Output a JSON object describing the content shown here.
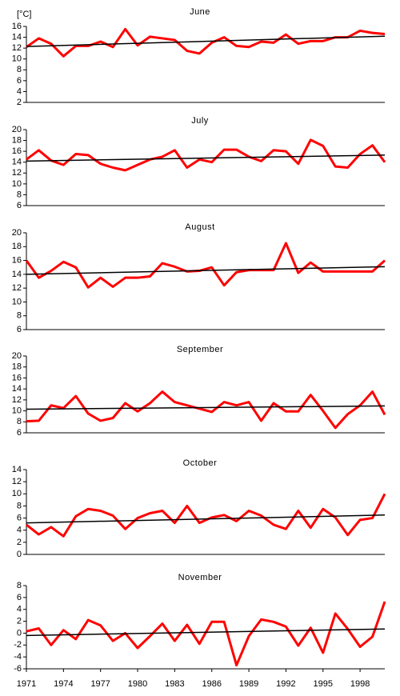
{
  "chart_data": [
    {
      "type": "line",
      "title": "June",
      "y_label": "[°C]",
      "x": [
        1971,
        1972,
        1973,
        1974,
        1975,
        1976,
        1977,
        1978,
        1979,
        1980,
        1981,
        1982,
        1983,
        1984,
        1985,
        1986,
        1987,
        1988,
        1989,
        1990,
        1991,
        1992,
        1993,
        1994,
        1995,
        1996,
        1997,
        1998,
        1999,
        2000
      ],
      "series": [
        {
          "color": "#ff0000",
          "values": [
            12.2,
            13.8,
            12.8,
            10.5,
            12.4,
            12.4,
            13.2,
            12.2,
            15.5,
            12.5,
            14.1,
            13.8,
            13.5,
            11.5,
            11.0,
            13.0,
            14.0,
            12.4,
            12.2,
            13.2,
            13.0,
            14.5,
            12.8,
            13.3,
            13.3,
            14.0,
            14.0,
            15.2,
            14.8,
            14.6
          ]
        },
        {
          "color": "#000000",
          "x": [
            1971,
            2000
          ],
          "values": [
            12.3,
            14.2
          ]
        }
      ],
      "xlim": [
        1971,
        2000
      ],
      "ylim": [
        2,
        16
      ],
      "yticks": [
        2,
        4,
        6,
        8,
        10,
        12,
        14,
        16
      ]
    },
    {
      "type": "line",
      "title": "July",
      "x": [
        1971,
        1972,
        1973,
        1974,
        1975,
        1976,
        1977,
        1978,
        1979,
        1980,
        1981,
        1982,
        1983,
        1984,
        1985,
        1986,
        1987,
        1988,
        1989,
        1990,
        1991,
        1992,
        1993,
        1994,
        1995,
        1996,
        1997,
        1998,
        1999,
        2000
      ],
      "series": [
        {
          "color": "#ff0000",
          "values": [
            14.5,
            16.2,
            14.3,
            13.5,
            15.5,
            15.3,
            13.7,
            13.0,
            12.5,
            13.5,
            14.5,
            15.0,
            16.2,
            13.0,
            14.5,
            14.0,
            16.3,
            16.3,
            15.0,
            14.2,
            16.2,
            16.0,
            13.7,
            18.1,
            17.0,
            13.2,
            13.0,
            15.5,
            17.1,
            14.0
          ]
        },
        {
          "color": "#000000",
          "x": [
            1971,
            2000
          ],
          "values": [
            14.2,
            15.3
          ]
        }
      ],
      "xlim": [
        1971,
        2000
      ],
      "ylim": [
        6,
        20
      ],
      "yticks": [
        6,
        8,
        10,
        12,
        14,
        16,
        18,
        20
      ]
    },
    {
      "type": "line",
      "title": "August",
      "x": [
        1971,
        1972,
        1973,
        1974,
        1975,
        1976,
        1977,
        1978,
        1979,
        1980,
        1981,
        1982,
        1983,
        1984,
        1985,
        1986,
        1987,
        1988,
        1989,
        1990,
        1991,
        1992,
        1993,
        1994,
        1995,
        1996,
        1997,
        1998,
        1999,
        2000
      ],
      "series": [
        {
          "color": "#ff0000",
          "values": [
            16.0,
            13.5,
            14.5,
            15.8,
            15.0,
            12.1,
            13.5,
            12.2,
            13.5,
            13.5,
            13.7,
            15.6,
            15.1,
            14.4,
            14.5,
            15.0,
            12.4,
            14.3,
            14.6,
            14.6,
            14.6,
            18.5,
            14.2,
            15.7,
            14.4,
            14.4,
            14.4,
            14.4,
            14.4,
            16.0
          ]
        },
        {
          "color": "#000000",
          "x": [
            1971,
            2000
          ],
          "values": [
            14.0,
            15.1
          ]
        }
      ],
      "xlim": [
        1971,
        2000
      ],
      "ylim": [
        6,
        20
      ],
      "yticks": [
        6,
        8,
        10,
        12,
        14,
        16,
        18,
        20
      ]
    },
    {
      "type": "line",
      "title": "September",
      "x": [
        1971,
        1972,
        1973,
        1974,
        1975,
        1976,
        1977,
        1978,
        1979,
        1980,
        1981,
        1982,
        1983,
        1984,
        1985,
        1986,
        1987,
        1988,
        1989,
        1990,
        1991,
        1992,
        1993,
        1994,
        1995,
        1996,
        1997,
        1998,
        1999,
        2000
      ],
      "series": [
        {
          "color": "#ff0000",
          "values": [
            8.1,
            8.2,
            11.0,
            10.5,
            12.7,
            9.5,
            8.2,
            8.7,
            11.4,
            9.9,
            11.4,
            13.5,
            11.6,
            11.0,
            10.4,
            9.8,
            11.6,
            11.0,
            11.6,
            8.2,
            11.4,
            9.9,
            9.9,
            12.9,
            10.0,
            6.9,
            9.4,
            11.0,
            13.5,
            9.3
          ]
        },
        {
          "color": "#000000",
          "x": [
            1971,
            2000
          ],
          "values": [
            10.3,
            10.9
          ]
        }
      ],
      "xlim": [
        1971,
        2000
      ],
      "ylim": [
        6,
        20
      ],
      "yticks": [
        6,
        8,
        10,
        12,
        14,
        16,
        18,
        20
      ]
    },
    {
      "type": "line",
      "title": "October",
      "x": [
        1971,
        1972,
        1973,
        1974,
        1975,
        1976,
        1977,
        1978,
        1979,
        1980,
        1981,
        1982,
        1983,
        1984,
        1985,
        1986,
        1987,
        1988,
        1989,
        1990,
        1991,
        1992,
        1993,
        1994,
        1995,
        1996,
        1997,
        1998,
        1999,
        2000
      ],
      "series": [
        {
          "color": "#ff0000",
          "values": [
            4.9,
            3.3,
            4.5,
            3.0,
            6.3,
            7.5,
            7.2,
            6.4,
            4.2,
            6.0,
            6.8,
            7.2,
            5.2,
            8.0,
            5.2,
            6.1,
            6.5,
            5.5,
            7.2,
            6.4,
            4.9,
            4.2,
            7.2,
            4.4,
            7.5,
            6.1,
            3.2,
            5.7,
            6.0,
            10.0
          ]
        },
        {
          "color": "#000000",
          "x": [
            1971,
            2000
          ],
          "values": [
            5.2,
            6.5
          ]
        }
      ],
      "xlim": [
        1971,
        2000
      ],
      "ylim": [
        0,
        14
      ],
      "yticks": [
        0,
        2,
        4,
        6,
        8,
        10,
        12,
        14
      ]
    },
    {
      "type": "line",
      "title": "November",
      "x": [
        1971,
        1972,
        1973,
        1974,
        1975,
        1976,
        1977,
        1978,
        1979,
        1980,
        1981,
        1982,
        1983,
        1984,
        1985,
        1986,
        1987,
        1988,
        1989,
        1990,
        1991,
        1992,
        1993,
        1994,
        1995,
        1996,
        1997,
        1998,
        1999,
        2000
      ],
      "series": [
        {
          "color": "#ff0000",
          "values": [
            0.3,
            0.8,
            -2.0,
            0.5,
            -1.0,
            2.2,
            1.3,
            -1.3,
            0,
            -2.5,
            -0.5,
            1.6,
            -1.3,
            1.4,
            -1.8,
            1.9,
            1.9,
            -5.4,
            -0.5,
            2.3,
            1.9,
            1.1,
            -2.1,
            0.9,
            -3.3,
            3.3,
            0.7,
            -2.3,
            -0.6,
            5.3
          ]
        },
        {
          "color": "#000000",
          "x": [
            1971,
            2000
          ],
          "values": [
            -0.4,
            0.7
          ]
        }
      ],
      "xlim": [
        1971,
        2000
      ],
      "ylim": [
        -6,
        8
      ],
      "yticks": [
        -6,
        -4,
        -2,
        0,
        2,
        4,
        6,
        8
      ],
      "xticks": [
        1971,
        1974,
        1977,
        1980,
        1983,
        1986,
        1989,
        1992,
        1995,
        1998
      ]
    }
  ]
}
